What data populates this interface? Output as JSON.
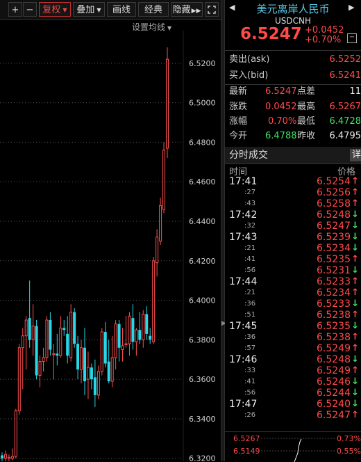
{
  "toolbar": {
    "plus": "+",
    "minus": "−",
    "adjust": "复权",
    "overlay": "叠加",
    "line": "画线",
    "classic": "经典",
    "hide": "隐藏",
    "expand_icon": "fast-forward-icon",
    "fullscreen_icon": "fullscreen-icon",
    "accent": "#f04848"
  },
  "chart": {
    "ma_settings": "设置均线",
    "price_labels": [
      "6.5200",
      "6.5000",
      "6.4800",
      "6.4600",
      "6.4400",
      "6.4200",
      "6.4000",
      "6.3800",
      "6.3600",
      "6.3400",
      "6.3200"
    ],
    "up_color": "#ff5050",
    "down_color": "#28d8e8"
  },
  "chart_data": {
    "type": "candlestick",
    "y_ticks": [
      6.52,
      6.5,
      6.48,
      6.46,
      6.44,
      6.42,
      6.4,
      6.38,
      6.36,
      6.34,
      6.32
    ],
    "ylim": [
      6.3185,
      6.5365
    ],
    "grid": true,
    "candles": [
      {
        "o": 6.3215,
        "h": 6.323,
        "l": 6.318,
        "c": 6.32
      },
      {
        "o": 6.32,
        "h": 6.324,
        "l": 6.318,
        "c": 6.322
      },
      {
        "o": 6.3205,
        "h": 6.322,
        "l": 6.3185,
        "c": 6.3205
      },
      {
        "o": 6.32,
        "h": 6.325,
        "l": 6.319,
        "c": 6.321
      },
      {
        "o": 6.321,
        "h": 6.345,
        "l": 6.32,
        "c": 6.344
      },
      {
        "o": 6.344,
        "h": 6.378,
        "l": 6.342,
        "c": 6.376
      },
      {
        "o": 6.376,
        "h": 6.386,
        "l": 6.355,
        "c": 6.382
      },
      {
        "o": 6.382,
        "h": 6.392,
        "l": 6.365,
        "c": 6.39
      },
      {
        "o": 6.391,
        "h": 6.41,
        "l": 6.376,
        "c": 6.38
      },
      {
        "o": 6.38,
        "h": 6.398,
        "l": 6.372,
        "c": 6.387
      },
      {
        "o": 6.387,
        "h": 6.39,
        "l": 6.36,
        "c": 6.362
      },
      {
        "o": 6.362,
        "h": 6.372,
        "l": 6.356,
        "c": 6.369
      },
      {
        "o": 6.369,
        "h": 6.376,
        "l": 6.364,
        "c": 6.371
      },
      {
        "o": 6.371,
        "h": 6.392,
        "l": 6.369,
        "c": 6.39
      },
      {
        "o": 6.39,
        "h": 6.394,
        "l": 6.372,
        "c": 6.375
      },
      {
        "o": 6.373,
        "h": 6.378,
        "l": 6.36,
        "c": 6.373
      },
      {
        "o": 6.373,
        "h": 6.383,
        "l": 6.367,
        "c": 6.372
      },
      {
        "o": 6.372,
        "h": 6.392,
        "l": 6.371,
        "c": 6.386
      },
      {
        "o": 6.386,
        "h": 6.39,
        "l": 6.382,
        "c": 6.385
      },
      {
        "o": 6.383,
        "h": 6.392,
        "l": 6.368,
        "c": 6.372
      },
      {
        "o": 6.371,
        "h": 6.398,
        "l": 6.369,
        "c": 6.394
      },
      {
        "o": 6.394,
        "h": 6.396,
        "l": 6.376,
        "c": 6.378
      },
      {
        "o": 6.378,
        "h": 6.382,
        "l": 6.36,
        "c": 6.365
      },
      {
        "o": 6.365,
        "h": 6.38,
        "l": 6.358,
        "c": 6.376
      },
      {
        "o": 6.376,
        "h": 6.386,
        "l": 6.352,
        "c": 6.359
      },
      {
        "o": 6.36,
        "h": 6.374,
        "l": 6.35,
        "c": 6.366
      },
      {
        "o": 6.366,
        "h": 6.368,
        "l": 6.355,
        "c": 6.36
      },
      {
        "o": 6.361,
        "h": 6.37,
        "l": 6.346,
        "c": 6.352
      },
      {
        "o": 6.352,
        "h": 6.367,
        "l": 6.35,
        "c": 6.364
      },
      {
        "o": 6.364,
        "h": 6.386,
        "l": 6.362,
        "c": 6.384
      },
      {
        "o": 6.384,
        "h": 6.389,
        "l": 6.366,
        "c": 6.368
      },
      {
        "o": 6.369,
        "h": 6.38,
        "l": 6.358,
        "c": 6.359
      },
      {
        "o": 6.359,
        "h": 6.382,
        "l": 6.356,
        "c": 6.371
      },
      {
        "o": 6.371,
        "h": 6.39,
        "l": 6.365,
        "c": 6.388
      },
      {
        "o": 6.388,
        "h": 6.39,
        "l": 6.369,
        "c": 6.376
      },
      {
        "o": 6.375,
        "h": 6.386,
        "l": 6.369,
        "c": 6.377
      },
      {
        "o": 6.378,
        "h": 6.392,
        "l": 6.376,
        "c": 6.378
      },
      {
        "o": 6.378,
        "h": 6.394,
        "l": 6.372,
        "c": 6.392
      },
      {
        "o": 6.391,
        "h": 6.398,
        "l": 6.375,
        "c": 6.379
      },
      {
        "o": 6.379,
        "h": 6.386,
        "l": 6.372,
        "c": 6.385
      },
      {
        "o": 6.385,
        "h": 6.394,
        "l": 6.378,
        "c": 6.38
      },
      {
        "o": 6.38,
        "h": 6.395,
        "l": 6.376,
        "c": 6.393
      },
      {
        "o": 6.393,
        "h": 6.397,
        "l": 6.38,
        "c": 6.383
      },
      {
        "o": 6.382,
        "h": 6.386,
        "l": 6.378,
        "c": 6.38
      },
      {
        "o": 6.379,
        "h": 6.422,
        "l": 6.378,
        "c": 6.42
      },
      {
        "o": 6.419,
        "h": 6.436,
        "l": 6.412,
        "c": 6.432
      },
      {
        "o": 6.43,
        "h": 6.452,
        "l": 6.428,
        "c": 6.448
      },
      {
        "o": 6.446,
        "h": 6.48,
        "l": 6.444,
        "c": 6.476
      },
      {
        "o": 6.477,
        "h": 6.528,
        "l": 6.472,
        "c": 6.522
      }
    ]
  },
  "quote": {
    "name": "美元离岸人民币",
    "code": "USDCNH",
    "price": "6.5247",
    "change": "+0.0452",
    "change_pct": "+0.70%",
    "prev_icon": "chevron-left-icon",
    "next_icon": "chevron-right-icon",
    "collapse_btn": "−",
    "ask_label": "卖出(ask)",
    "ask": "6.5252",
    "bid_label": "买入(bid)",
    "bid": "6.5241",
    "latest_label": "最新",
    "latest": "6.5247",
    "spread_label": "点差",
    "spread": "11",
    "change_label": "涨跌",
    "change_val": "0.0452",
    "high_label": "最高",
    "high": "6.5267",
    "pct_label": "涨幅",
    "pct_val": "0.70%",
    "low_label": "最低",
    "low": "6.4728",
    "open_label": "今开",
    "open": "6.4788",
    "prev_close_label": "昨收",
    "prev_close": "6.4795"
  },
  "ticks": {
    "tab_label": "分时成交",
    "detail_label": "详",
    "col_time": "时间",
    "col_price": "价格",
    "rows": [
      {
        "t": "17:41",
        "p": "6.5254",
        "d": "up"
      },
      {
        "t": ":27",
        "p": "6.5256",
        "d": "up"
      },
      {
        "t": ":43",
        "p": "6.5258",
        "d": "up"
      },
      {
        "t": "17:42",
        "p": "6.5248",
        "d": "down"
      },
      {
        "t": ":32",
        "p": "6.5247",
        "d": "down"
      },
      {
        "t": "17:43",
        "p": "6.5239",
        "d": "down"
      },
      {
        "t": ":21",
        "p": "6.5234",
        "d": "down"
      },
      {
        "t": ":41",
        "p": "6.5235",
        "d": "up"
      },
      {
        "t": ":56",
        "p": "6.5231",
        "d": "down"
      },
      {
        "t": "17:44",
        "p": "6.5233",
        "d": "up"
      },
      {
        "t": ":21",
        "p": "6.5234",
        "d": "up"
      },
      {
        "t": ":36",
        "p": "6.5233",
        "d": "down"
      },
      {
        "t": ":51",
        "p": "6.5238",
        "d": "up"
      },
      {
        "t": "17:45",
        "p": "6.5235",
        "d": "down"
      },
      {
        "t": ":36",
        "p": "6.5238",
        "d": "up"
      },
      {
        "t": ":57",
        "p": "6.5249",
        "d": "up"
      },
      {
        "t": "17:46",
        "p": "6.5248",
        "d": "down"
      },
      {
        "t": ":33",
        "p": "6.5249",
        "d": "up"
      },
      {
        "t": ":41",
        "p": "6.5246",
        "d": "down"
      },
      {
        "t": ":56",
        "p": "6.5244",
        "d": "down"
      },
      {
        "t": "17:47",
        "p": "6.5240",
        "d": "down"
      },
      {
        "t": ":26",
        "p": "6.5247",
        "d": "up"
      }
    ],
    "up_color": "#ff4a4a",
    "down_color": "#40e060"
  },
  "mini_chart": {
    "left_top": "6.5267",
    "left_bottom": "6.5149",
    "right_top": "0.73%",
    "right_bottom": "0.55%"
  }
}
